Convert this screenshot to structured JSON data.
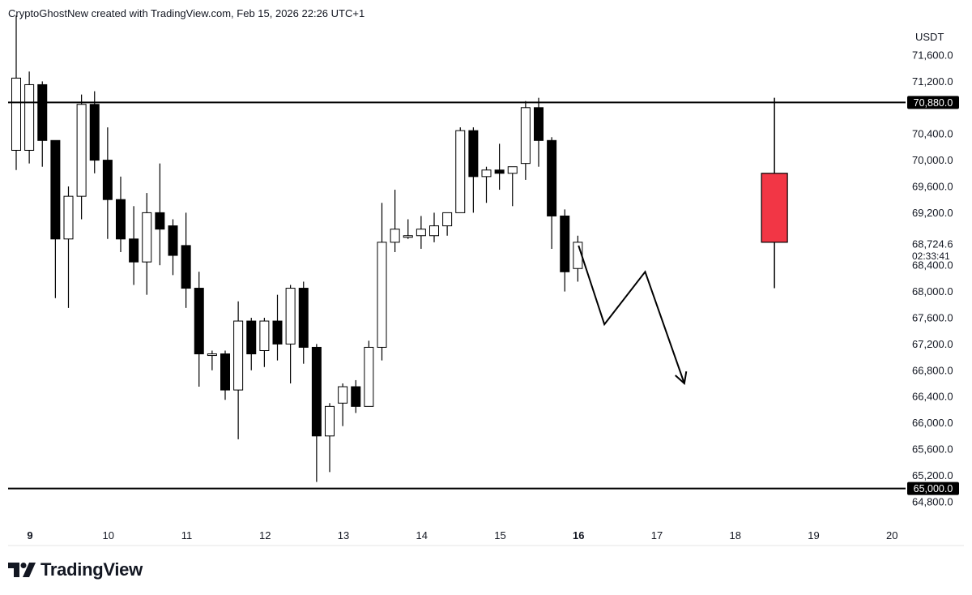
{
  "header": {
    "text": "CryptoGhostNew created with TradingView.com, Feb 15, 2026 22:26 UTC+1"
  },
  "brand": {
    "name": "TradingView",
    "logo_icon": "tradingview-logo-icon"
  },
  "chart_data": {
    "type": "candlestick",
    "currency_label": "USDT",
    "y_ticks": [
      "71,600.0",
      "71,200.0",
      "70,400.0",
      "70,000.0",
      "69,600.0",
      "69,200.0",
      "68,400.0",
      "68,000.0",
      "67,600.0",
      "67,200.0",
      "66,800.0",
      "66,400.0",
      "66,000.0",
      "65,600.0",
      "65,200.0",
      "64,800.0"
    ],
    "y_tick_values": [
      71600,
      71200,
      70400,
      70000,
      69600,
      69200,
      68400,
      68000,
      67600,
      67200,
      66800,
      66400,
      66000,
      65600,
      65200,
      64800
    ],
    "ylim": [
      64600,
      72000
    ],
    "x_labels": [
      {
        "label": "9",
        "day": 9,
        "bold": true
      },
      {
        "label": "10",
        "day": 10,
        "bold": false
      },
      {
        "label": "11",
        "day": 11,
        "bold": false
      },
      {
        "label": "12",
        "day": 12,
        "bold": false
      },
      {
        "label": "13",
        "day": 13,
        "bold": false
      },
      {
        "label": "14",
        "day": 14,
        "bold": false
      },
      {
        "label": "15",
        "day": 15,
        "bold": false
      },
      {
        "label": "16",
        "day": 16,
        "bold": true
      },
      {
        "label": "17",
        "day": 17,
        "bold": false
      },
      {
        "label": "18",
        "day": 18,
        "bold": false
      },
      {
        "label": "19",
        "day": 19,
        "bold": false
      },
      {
        "label": "20",
        "day": 20,
        "bold": false
      }
    ],
    "candle_interval_hours": 4,
    "candles": [
      {
        "o": 70150,
        "h": 72200,
        "c": 71250,
        "l": 69850
      },
      {
        "o": 70150,
        "h": 71350,
        "c": 71150,
        "l": 69950
      },
      {
        "o": 71150,
        "h": 71200,
        "c": 70300,
        "l": 69900
      },
      {
        "o": 70300,
        "h": 70300,
        "c": 68800,
        "l": 67900
      },
      {
        "o": 68800,
        "h": 69600,
        "c": 69450,
        "l": 67750
      },
      {
        "o": 69450,
        "h": 71000,
        "c": 70850,
        "l": 69100
      },
      {
        "o": 70850,
        "h": 71050,
        "c": 70000,
        "l": 69800
      },
      {
        "o": 70000,
        "h": 70500,
        "c": 69400,
        "l": 68800
      },
      {
        "o": 69400,
        "h": 69750,
        "c": 68800,
        "l": 68600
      },
      {
        "o": 68800,
        "h": 69300,
        "c": 68450,
        "l": 68100
      },
      {
        "o": 68450,
        "h": 69500,
        "c": 69200,
        "l": 67950
      },
      {
        "o": 69200,
        "h": 69950,
        "c": 68950,
        "l": 68400
      },
      {
        "o": 69000,
        "h": 69100,
        "c": 68550,
        "l": 68250
      },
      {
        "o": 68700,
        "h": 69200,
        "c": 68050,
        "l": 67750
      },
      {
        "o": 68050,
        "h": 68300,
        "c": 67050,
        "l": 66550
      },
      {
        "o": 67050,
        "h": 67100,
        "c": 67050,
        "l": 66800
      },
      {
        "o": 67050,
        "h": 67100,
        "c": 66500,
        "l": 66350
      },
      {
        "o": 66500,
        "h": 67850,
        "c": 67550,
        "l": 65750
      },
      {
        "o": 67550,
        "h": 67600,
        "c": 67050,
        "l": 66800
      },
      {
        "o": 67100,
        "h": 67600,
        "c": 67550,
        "l": 66850
      },
      {
        "o": 67550,
        "h": 67950,
        "c": 67200,
        "l": 66950
      },
      {
        "o": 67200,
        "h": 68100,
        "c": 68050,
        "l": 66600
      },
      {
        "o": 68050,
        "h": 68150,
        "c": 67150,
        "l": 66900
      },
      {
        "o": 67150,
        "h": 67200,
        "c": 65800,
        "l": 65100
      },
      {
        "o": 65800,
        "h": 66300,
        "c": 66250,
        "l": 65250
      },
      {
        "o": 66300,
        "h": 66600,
        "c": 66550,
        "l": 65950
      },
      {
        "o": 66550,
        "h": 66650,
        "c": 66250,
        "l": 66150
      },
      {
        "o": 66250,
        "h": 67250,
        "c": 67150,
        "l": 66250
      },
      {
        "o": 67150,
        "h": 69350,
        "c": 68750,
        "l": 66950
      },
      {
        "o": 68750,
        "h": 69550,
        "c": 68950,
        "l": 68600
      },
      {
        "o": 68850,
        "h": 69100,
        "c": 68850,
        "l": 68800
      },
      {
        "o": 68850,
        "h": 69150,
        "c": 68950,
        "l": 68650
      },
      {
        "o": 68850,
        "h": 69200,
        "c": 69000,
        "l": 68750
      },
      {
        "o": 69000,
        "h": 69150,
        "c": 69200,
        "l": 68850
      },
      {
        "o": 69200,
        "h": 70500,
        "c": 70450,
        "l": 69200
      },
      {
        "o": 70450,
        "h": 70500,
        "c": 69750,
        "l": 69200
      },
      {
        "o": 69750,
        "h": 69900,
        "c": 69850,
        "l": 69350
      },
      {
        "o": 69850,
        "h": 70250,
        "c": 69800,
        "l": 69550
      },
      {
        "o": 69800,
        "h": 69900,
        "c": 69900,
        "l": 69300
      },
      {
        "o": 69950,
        "h": 70900,
        "c": 70800,
        "l": 69700
      },
      {
        "o": 70800,
        "h": 70950,
        "c": 70300,
        "l": 69900
      },
      {
        "o": 70300,
        "h": 70350,
        "c": 69150,
        "l": 68650
      },
      {
        "o": 69150,
        "h": 69250,
        "c": 68300,
        "l": 68000
      },
      {
        "o": 68350,
        "h": 68850,
        "c": 68750,
        "l": 68150
      }
    ],
    "horizontal_lines": [
      {
        "value": 70880,
        "label": "70,880.0"
      },
      {
        "value": 65000,
        "label": "65,000.0"
      }
    ],
    "last_price": {
      "label": "68,724.6",
      "countdown": "02:33:41"
    },
    "projection_path": [
      {
        "t": 16.0,
        "v": 68700
      },
      {
        "t": 16.33,
        "v": 67500
      },
      {
        "t": 16.85,
        "v": 68300
      },
      {
        "t": 17.35,
        "v": 66600
      }
    ],
    "forecast_candle": {
      "t": 18.5,
      "o": 68750,
      "h": 70950,
      "l": 68050,
      "c": 69800,
      "color": "#f23645"
    },
    "colors": {
      "up_fill": "#ffffff",
      "down_fill": "#000000",
      "stroke": "#000000",
      "label_bg": "#000000"
    }
  }
}
